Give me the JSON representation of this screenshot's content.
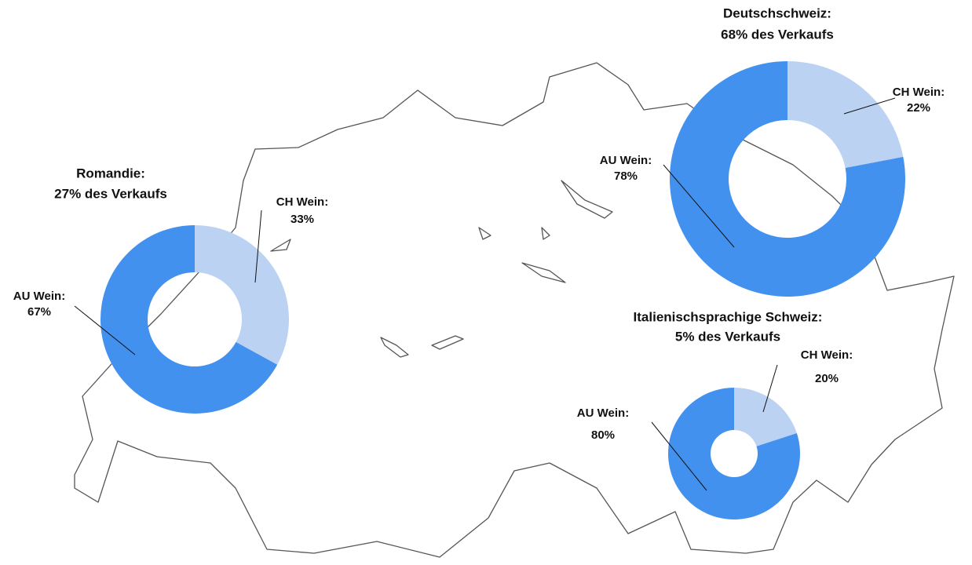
{
  "chart_data": [
    {
      "type": "pie",
      "title": "Romandie:",
      "subtitle": "27% des Verkaufs",
      "categories": [
        "CH Wein:",
        "AU Wein:"
      ],
      "values": [
        33,
        67
      ],
      "value_labels": [
        "33%",
        "67%"
      ],
      "colors": [
        "#bcd2f2",
        "#4391ef"
      ]
    },
    {
      "type": "pie",
      "title": "Deutschschweiz:",
      "subtitle": "68% des Verkaufs",
      "categories": [
        "CH Wein:",
        "AU Wein:"
      ],
      "values": [
        22,
        78
      ],
      "value_labels": [
        "22%",
        "78%"
      ],
      "colors": [
        "#bcd2f2",
        "#4391ef"
      ]
    },
    {
      "type": "pie",
      "title": "Italienischsprachige Schweiz:",
      "subtitle": "5% des Verkaufs",
      "categories": [
        "CH Wein:",
        "AU Wein:"
      ],
      "values": [
        20,
        80
      ],
      "value_labels": [
        "20%",
        "80%"
      ],
      "colors": [
        "#bcd2f2",
        "#4391ef"
      ]
    }
  ]
}
